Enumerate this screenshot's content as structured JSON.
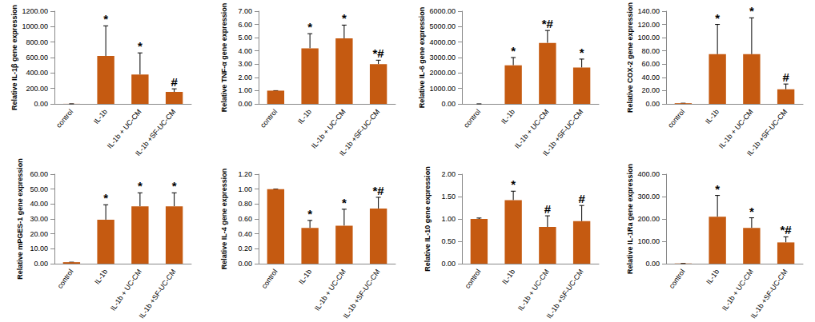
{
  "chart_data": [
    {
      "type": "bar",
      "y_label": "Relative IL-1β gene expression",
      "color": "#c55a11",
      "grid": false,
      "categories": [
        "control",
        "IL-1b",
        "IL-1b + UC-CM",
        "IL-1b +SF-UC-CM"
      ],
      "values": [
        1,
        620,
        380,
        155
      ],
      "errors": [
        0,
        390,
        280,
        40
      ],
      "annotations": [
        null,
        "*",
        "*",
        "#"
      ],
      "ylim": [
        0,
        1200
      ],
      "yticks": [
        {
          "value": 0,
          "label": "0.00"
        },
        {
          "value": 200,
          "label": "200.00"
        },
        {
          "value": 400,
          "label": "400.00"
        },
        {
          "value": 600,
          "label": "600.00"
        },
        {
          "value": 800,
          "label": "800.00"
        },
        {
          "value": 1000,
          "label": "1000.00"
        },
        {
          "value": 1200,
          "label": "1200.00"
        }
      ]
    },
    {
      "type": "bar",
      "y_label": "Relative TNF-α gene expression",
      "color": "#c55a11",
      "grid": false,
      "categories": [
        "control",
        "IL-1b",
        "IL-1b + UC-CM",
        "IL-1b +SF-UC-CM"
      ],
      "values": [
        1.0,
        4.2,
        4.95,
        3.0
      ],
      "errors": [
        0,
        1.1,
        1.0,
        0.3
      ],
      "annotations": [
        null,
        "*",
        "*",
        "*#"
      ],
      "ylim": [
        0,
        7
      ],
      "yticks": [
        {
          "value": 0,
          "label": "0.00"
        },
        {
          "value": 1,
          "label": "1.00"
        },
        {
          "value": 2,
          "label": "2.00"
        },
        {
          "value": 3,
          "label": "3.00"
        },
        {
          "value": 4,
          "label": "4.00"
        },
        {
          "value": 5,
          "label": "5.00"
        },
        {
          "value": 6,
          "label": "6.00"
        },
        {
          "value": 7,
          "label": "7.00"
        }
      ]
    },
    {
      "type": "bar",
      "y_label": "Relative IL-6 gene expression",
      "color": "#c55a11",
      "grid": false,
      "categories": [
        "control",
        "IL-1b",
        "IL-1b + UC-CM",
        "IL-1b +SF-UC-CM"
      ],
      "values": [
        1,
        2500,
        3950,
        2350
      ],
      "errors": [
        0,
        500,
        800,
        550
      ],
      "annotations": [
        null,
        "*",
        "*#",
        "*"
      ],
      "ylim": [
        0,
        6000
      ],
      "yticks": [
        {
          "value": 0,
          "label": "0.00"
        },
        {
          "value": 1000,
          "label": "1000.00"
        },
        {
          "value": 2000,
          "label": "2000.00"
        },
        {
          "value": 3000,
          "label": "3000.00"
        },
        {
          "value": 4000,
          "label": "4000.00"
        },
        {
          "value": 5000,
          "label": "5000.00"
        },
        {
          "value": 6000,
          "label": "6000.00"
        }
      ]
    },
    {
      "type": "bar",
      "y_label": "Relative COX-2 gene expression",
      "color": "#c55a11",
      "grid": false,
      "categories": [
        "control",
        "IL-1b",
        "IL-1b + UC-CM",
        "IL-1b +SF-UC-CM"
      ],
      "values": [
        1,
        75,
        75,
        22
      ],
      "errors": [
        0,
        45,
        55,
        8
      ],
      "annotations": [
        null,
        "*",
        "*",
        "#"
      ],
      "ylim": [
        0,
        140
      ],
      "yticks": [
        {
          "value": 0,
          "label": "0.00"
        },
        {
          "value": 20,
          "label": "20.00"
        },
        {
          "value": 40,
          "label": "40.00"
        },
        {
          "value": 60,
          "label": "60.00"
        },
        {
          "value": 80,
          "label": "80.00"
        },
        {
          "value": 100,
          "label": "100.00"
        },
        {
          "value": 120,
          "label": "120.00"
        },
        {
          "value": 140,
          "label": "140.00"
        }
      ]
    },
    {
      "type": "bar",
      "y_label": "Relative mPGES-1 gene expression",
      "color": "#c55a11",
      "grid": false,
      "categories": [
        "control",
        "IL-1b",
        "IL-1b + UC-CM",
        "IL-1b +SF-UC-CM"
      ],
      "values": [
        1,
        29.5,
        38.5,
        38.5
      ],
      "errors": [
        0,
        10,
        9,
        9
      ],
      "annotations": [
        null,
        "*",
        "*",
        "*"
      ],
      "ylim": [
        0,
        60
      ],
      "yticks": [
        {
          "value": 0,
          "label": "0.00"
        },
        {
          "value": 10,
          "label": "10.00"
        },
        {
          "value": 20,
          "label": "20.00"
        },
        {
          "value": 30,
          "label": "30.00"
        },
        {
          "value": 40,
          "label": "40.00"
        },
        {
          "value": 50,
          "label": "50.00"
        },
        {
          "value": 60,
          "label": "60.00"
        }
      ]
    },
    {
      "type": "bar",
      "y_label": "Relative IL-4 gene expression",
      "color": "#c55a11",
      "grid": false,
      "categories": [
        "control",
        "IL-1b",
        "IL-1b + UC-CM",
        "IL-1b +SF-UC-CM"
      ],
      "values": [
        1.0,
        0.48,
        0.51,
        0.74
      ],
      "errors": [
        0,
        0.1,
        0.22,
        0.15
      ],
      "annotations": [
        null,
        "*",
        "*",
        "*#"
      ],
      "ylim": [
        0,
        1.2
      ],
      "yticks": [
        {
          "value": 0,
          "label": "0.00"
        },
        {
          "value": 0.2,
          "label": "0.20"
        },
        {
          "value": 0.4,
          "label": "0.40"
        },
        {
          "value": 0.6,
          "label": "0.60"
        },
        {
          "value": 0.8,
          "label": "0.80"
        },
        {
          "value": 1.0,
          "label": "1.00"
        },
        {
          "value": 1.2,
          "label": "1.20"
        }
      ]
    },
    {
      "type": "bar",
      "y_label": "Relative IL-10 gene expression",
      "color": "#c55a11",
      "grid": false,
      "categories": [
        "control",
        "IL-1b",
        "IL-1b + UC-CM",
        "IL-1b +SF-UC-CM"
      ],
      "values": [
        1.0,
        1.42,
        0.82,
        0.95
      ],
      "errors": [
        0.02,
        0.2,
        0.25,
        0.35
      ],
      "annotations": [
        null,
        "*",
        "#",
        "#"
      ],
      "ylim": [
        0,
        2
      ],
      "yticks": [
        {
          "value": 0,
          "label": "0.00"
        },
        {
          "value": 0.5,
          "label": "0.50"
        },
        {
          "value": 1.0,
          "label": "1.00"
        },
        {
          "value": 1.5,
          "label": "1.50"
        },
        {
          "value": 2.0,
          "label": "2.00"
        }
      ]
    },
    {
      "type": "bar",
      "y_label": "Relative IL-1Ra gene expression",
      "color": "#c55a11",
      "grid": false,
      "categories": [
        "control",
        "IL-1b",
        "IL-1b + UC-CM",
        "IL-1b +SF-UC-CM"
      ],
      "values": [
        1,
        210,
        160,
        95
      ],
      "errors": [
        0,
        95,
        45,
        25
      ],
      "annotations": [
        null,
        "*",
        "*",
        "*#"
      ],
      "ylim": [
        0,
        400
      ],
      "yticks": [
        {
          "value": 0,
          "label": "0.00"
        },
        {
          "value": 100,
          "label": "100.00"
        },
        {
          "value": 200,
          "label": "200.00"
        },
        {
          "value": 300,
          "label": "300.00"
        },
        {
          "value": 400,
          "label": "400.00"
        }
      ]
    }
  ]
}
